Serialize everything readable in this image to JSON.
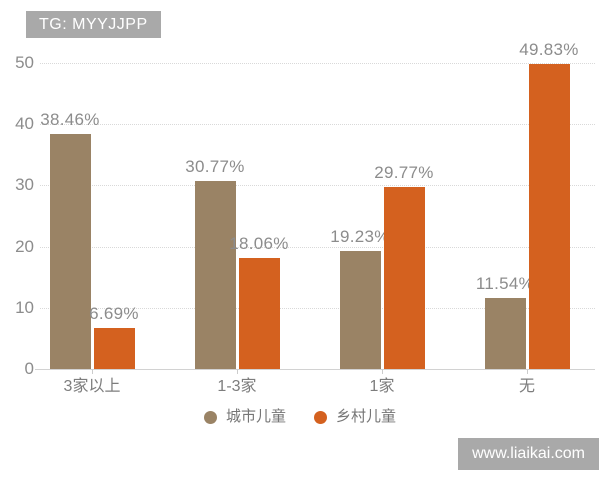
{
  "header": {
    "tag": "TG: MYYJJPP"
  },
  "footer": {
    "watermark": "www.liaikai.com"
  },
  "colors": {
    "city": "#9a8365",
    "village": "#d4611f",
    "tag_background": "#a9a9a9",
    "gridline": "#d9d9d9",
    "axis_text": "#8c8c8c",
    "background": "#ffffff"
  },
  "chart_data": {
    "type": "bar",
    "title": "",
    "xlabel": "",
    "ylabel": "",
    "categories": [
      "3家以上",
      "1-3家",
      "1家",
      "无"
    ],
    "series": [
      {
        "name": "城市儿童",
        "color": "#9a8365",
        "values": [
          38.46,
          30.77,
          19.23,
          11.54
        ],
        "labels": [
          "38.46%",
          "30.77%",
          "19.23%",
          "11.54%"
        ]
      },
      {
        "name": "乡村儿童",
        "color": "#d4611f",
        "values": [
          6.69,
          18.06,
          29.77,
          49.83
        ],
        "labels": [
          "6.69%",
          "18.06%",
          "29.77%",
          "49.83%"
        ]
      }
    ],
    "ylim": [
      0,
      50
    ],
    "yticks": [
      0,
      10,
      20,
      30,
      40,
      50
    ],
    "grid": "horizontal dotted",
    "legend_position": "bottom"
  }
}
